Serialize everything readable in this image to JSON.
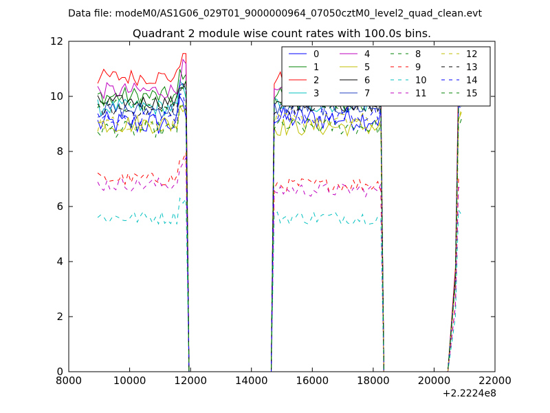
{
  "suptitle": "Data file: modeM0/AS1G06_029T01_9000000964_07050cztM0_level2_quad_clean.evt",
  "chart_data": {
    "type": "line",
    "title": "Quadrant 2 module wise count rates with 100.0s bins.",
    "xlabel": "",
    "ylabel": "",
    "x_offset_label": "+2.2224e8",
    "xlim": [
      8000,
      22000
    ],
    "ylim": [
      0,
      12
    ],
    "xticks": [
      8000,
      10000,
      12000,
      14000,
      16000,
      18000,
      20000,
      22000
    ],
    "yticks": [
      0,
      2,
      4,
      6,
      8,
      10,
      12
    ],
    "grid": false,
    "legend": {
      "placement": "top-right",
      "columns": 4
    },
    "segments": [
      {
        "start": 8950,
        "end": 11850
      },
      {
        "start": 14750,
        "end": 18250
      },
      {
        "start": 20700,
        "end": 20950
      }
    ],
    "gaps_zero_until": [
      [
        11950,
        14650
      ],
      [
        18350,
        20450
      ]
    ],
    "series": [
      {
        "name": "0",
        "color": "#0000ff",
        "dash": "solid",
        "levels": [
          9.0,
          9.2,
          9.6
        ],
        "noise": 0.45
      },
      {
        "name": "1",
        "color": "#008000",
        "dash": "solid",
        "levels": [
          10.0,
          10.1,
          10.3
        ],
        "noise": 0.35
      },
      {
        "name": "2",
        "color": "#ff0000",
        "dash": "solid",
        "levels": [
          10.7,
          10.6,
          10.8
        ],
        "noise": 0.3
      },
      {
        "name": "3",
        "color": "#00bfbf",
        "dash": "solid",
        "levels": [
          9.6,
          9.7,
          9.8
        ],
        "noise": 0.3
      },
      {
        "name": "4",
        "color": "#bf00bf",
        "dash": "solid",
        "levels": [
          10.2,
          10.1,
          10.3
        ],
        "noise": 0.3
      },
      {
        "name": "5",
        "color": "#bfbf00",
        "dash": "solid",
        "levels": [
          9.0,
          8.9,
          9.2
        ],
        "noise": 0.35
      },
      {
        "name": "6",
        "color": "#000000",
        "dash": "solid",
        "levels": [
          9.8,
          9.7,
          9.9
        ],
        "noise": 0.25
      },
      {
        "name": "7",
        "color": "#1f3fbf",
        "dash": "solid",
        "levels": [
          9.5,
          9.6,
          9.7
        ],
        "noise": 0.3
      },
      {
        "name": "8",
        "color": "#008000",
        "dash": "dashed",
        "levels": [
          8.8,
          8.9,
          9.1
        ],
        "noise": 0.3
      },
      {
        "name": "9",
        "color": "#ff0000",
        "dash": "dashed",
        "levels": [
          7.0,
          6.8,
          7.0
        ],
        "noise": 0.25
      },
      {
        "name": "10",
        "color": "#00bfbf",
        "dash": "dashed",
        "levels": [
          5.6,
          5.6,
          5.7
        ],
        "noise": 0.25
      },
      {
        "name": "11",
        "color": "#bf00bf",
        "dash": "dashed",
        "levels": [
          6.8,
          6.6,
          6.8
        ],
        "noise": 0.25
      },
      {
        "name": "12",
        "color": "#bfbf00",
        "dash": "dashed",
        "levels": [
          9.0,
          9.1,
          9.3
        ],
        "noise": 0.3
      },
      {
        "name": "13",
        "color": "#000000",
        "dash": "dashed",
        "levels": [
          9.5,
          9.6,
          9.7
        ],
        "noise": 0.25
      },
      {
        "name": "14",
        "color": "#0000ff",
        "dash": "dashed",
        "levels": [
          9.2,
          9.3,
          9.5
        ],
        "noise": 0.3
      },
      {
        "name": "15",
        "color": "#008000",
        "dash": "dashed",
        "levels": [
          9.7,
          9.8,
          9.9
        ],
        "noise": 0.3
      }
    ]
  }
}
